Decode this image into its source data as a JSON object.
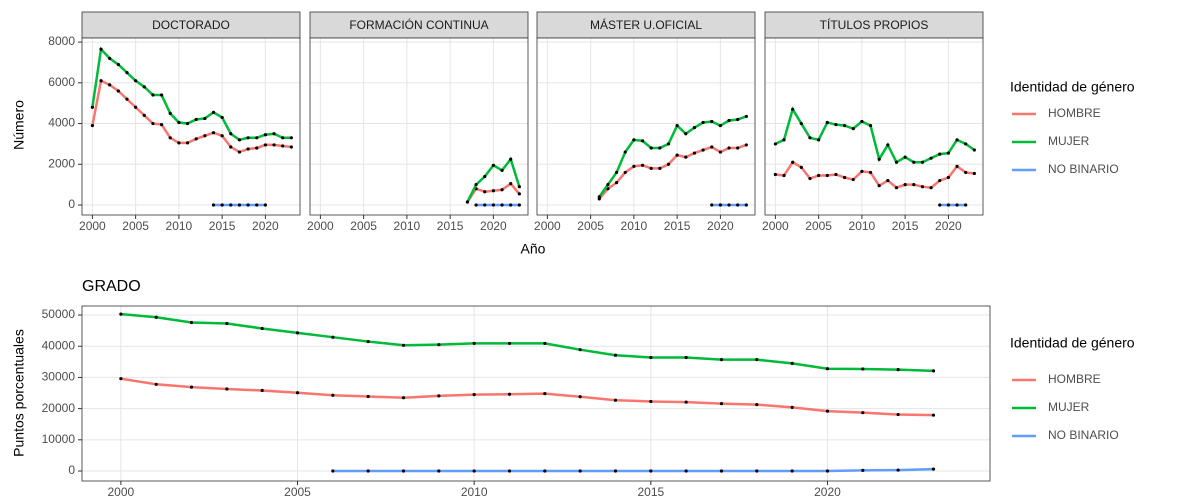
{
  "chart_data": [
    {
      "type": "line",
      "xlabel": "Año",
      "ylabel": "Número",
      "legend_title": "Identidad de género",
      "xlim": [
        1998.8,
        2024
      ],
      "xticks": [
        2000,
        2005,
        2010,
        2015,
        2020
      ],
      "ylim": [
        -490,
        8200
      ],
      "yticks": [
        0,
        2000,
        4000,
        6000,
        8000
      ],
      "grid": true,
      "facets": [
        {
          "title": "DOCTORADO",
          "series": [
            {
              "name": "HOMBRE",
              "color": "#F8766D",
              "x": [
                2000,
                2001,
                2002,
                2003,
                2004,
                2005,
                2006,
                2007,
                2008,
                2009,
                2010,
                2011,
                2012,
                2013,
                2014,
                2015,
                2016,
                2017,
                2018,
                2019,
                2020,
                2021,
                2022,
                2023
              ],
              "values": [
                3900,
                6100,
                5900,
                5600,
                5200,
                4800,
                4400,
                4000,
                3950,
                3300,
                3050,
                3050,
                3250,
                3400,
                3550,
                3400,
                2850,
                2600,
                2750,
                2800,
                2950,
                2950,
                2900,
                2850
              ]
            },
            {
              "name": "MUJER",
              "color": "#00BA38",
              "x": [
                2000,
                2001,
                2002,
                2003,
                2004,
                2005,
                2006,
                2007,
                2008,
                2009,
                2010,
                2011,
                2012,
                2013,
                2014,
                2015,
                2016,
                2017,
                2018,
                2019,
                2020,
                2021,
                2022,
                2023
              ],
              "values": [
                4800,
                7650,
                7200,
                6900,
                6500,
                6100,
                5800,
                5400,
                5400,
                4500,
                4050,
                4000,
                4200,
                4250,
                4550,
                4300,
                3500,
                3200,
                3300,
                3300,
                3450,
                3500,
                3300,
                3300
              ]
            },
            {
              "name": "NO BINARIO",
              "color": "#619CFF",
              "x": [
                2014,
                2015,
                2016,
                2017,
                2018,
                2019,
                2020
              ],
              "values": [
                0,
                0,
                0,
                0,
                0,
                0,
                0
              ]
            }
          ]
        },
        {
          "title": "FORMACIÓN CONTINUA",
          "series": [
            {
              "name": "HOMBRE",
              "color": "#F8766D",
              "x": [
                2017,
                2018,
                2019,
                2020,
                2021,
                2022,
                2023
              ],
              "values": [
                150,
                800,
                650,
                700,
                750,
                1050,
                550
              ]
            },
            {
              "name": "MUJER",
              "color": "#00BA38",
              "x": [
                2017,
                2018,
                2019,
                2020,
                2021,
                2022,
                2023
              ],
              "values": [
                150,
                1000,
                1400,
                1950,
                1700,
                2250,
                900
              ]
            },
            {
              "name": "NO BINARIO",
              "color": "#619CFF",
              "x": [
                2018,
                2019,
                2020,
                2021,
                2022,
                2023
              ],
              "values": [
                0,
                0,
                0,
                0,
                0,
                0
              ]
            }
          ]
        },
        {
          "title": "MÁSTER U.OFICIAL",
          "series": [
            {
              "name": "HOMBRE",
              "color": "#F8766D",
              "x": [
                2006,
                2007,
                2008,
                2009,
                2010,
                2011,
                2012,
                2013,
                2014,
                2015,
                2016,
                2017,
                2018,
                2019,
                2020,
                2021,
                2022,
                2023
              ],
              "values": [
                300,
                800,
                1100,
                1600,
                1900,
                1950,
                1800,
                1800,
                2000,
                2450,
                2350,
                2550,
                2700,
                2850,
                2600,
                2800,
                2800,
                2950
              ]
            },
            {
              "name": "MUJER",
              "color": "#00BA38",
              "x": [
                2006,
                2007,
                2008,
                2009,
                2010,
                2011,
                2012,
                2013,
                2014,
                2015,
                2016,
                2017,
                2018,
                2019,
                2020,
                2021,
                2022,
                2023
              ],
              "values": [
                400,
                1000,
                1600,
                2600,
                3200,
                3150,
                2800,
                2800,
                3000,
                3900,
                3500,
                3800,
                4050,
                4100,
                3900,
                4150,
                4200,
                4350
              ]
            },
            {
              "name": "NO BINARIO",
              "color": "#619CFF",
              "x": [
                2019,
                2020,
                2021,
                2022,
                2023
              ],
              "values": [
                0,
                0,
                0,
                0,
                0
              ]
            }
          ]
        },
        {
          "title": "TÍTULOS PROPIOS",
          "series": [
            {
              "name": "HOMBRE",
              "color": "#F8766D",
              "x": [
                2000,
                2001,
                2002,
                2003,
                2004,
                2005,
                2006,
                2007,
                2008,
                2009,
                2010,
                2011,
                2012,
                2013,
                2014,
                2015,
                2016,
                2017,
                2018,
                2019,
                2020,
                2021,
                2022,
                2023
              ],
              "values": [
                1500,
                1450,
                2100,
                1850,
                1300,
                1450,
                1450,
                1500,
                1350,
                1250,
                1650,
                1600,
                950,
                1200,
                850,
                1000,
                1000,
                900,
                850,
                1200,
                1350,
                1900,
                1600,
                1550
              ]
            },
            {
              "name": "MUJER",
              "color": "#00BA38",
              "x": [
                2000,
                2001,
                2002,
                2003,
                2004,
                2005,
                2006,
                2007,
                2008,
                2009,
                2010,
                2011,
                2012,
                2013,
                2014,
                2015,
                2016,
                2017,
                2018,
                2019,
                2020,
                2021,
                2022,
                2023
              ],
              "values": [
                3000,
                3200,
                4700,
                4000,
                3300,
                3200,
                4050,
                3950,
                3900,
                3750,
                4100,
                3900,
                2250,
                2950,
                2100,
                2350,
                2100,
                2100,
                2300,
                2500,
                2550,
                3200,
                3000,
                2700
              ]
            },
            {
              "name": "NO BINARIO",
              "color": "#619CFF",
              "x": [
                2019,
                2020,
                2021,
                2022
              ],
              "values": [
                0,
                0,
                0,
                0
              ]
            }
          ]
        }
      ]
    },
    {
      "type": "line",
      "title": "GRADO",
      "ylabel": "Puntos porcentuales",
      "legend_title": "Identidad de género",
      "xlim": [
        1998.9,
        2024.6
      ],
      "xticks": [
        2000,
        2005,
        2010,
        2015,
        2020
      ],
      "ylim": [
        -3200,
        52900
      ],
      "yticks": [
        0,
        10000,
        20000,
        30000,
        40000,
        50000
      ],
      "grid": true,
      "series": [
        {
          "name": "HOMBRE",
          "color": "#F8766D",
          "x": [
            2000,
            2001,
            2002,
            2003,
            2004,
            2005,
            2006,
            2007,
            2008,
            2009,
            2010,
            2011,
            2012,
            2013,
            2014,
            2015,
            2016,
            2017,
            2018,
            2019,
            2020,
            2021,
            2022,
            2023
          ],
          "values": [
            29600,
            27800,
            26900,
            26300,
            25800,
            25100,
            24300,
            23900,
            23500,
            24100,
            24500,
            24600,
            24800,
            23800,
            22700,
            22300,
            22100,
            21600,
            21300,
            20400,
            19200,
            18700,
            18100,
            17900
          ]
        },
        {
          "name": "MUJER",
          "color": "#00BA38",
          "x": [
            2000,
            2001,
            2002,
            2003,
            2004,
            2005,
            2006,
            2007,
            2008,
            2009,
            2010,
            2011,
            2012,
            2013,
            2014,
            2015,
            2016,
            2017,
            2018,
            2019,
            2020,
            2021,
            2022,
            2023
          ],
          "values": [
            50300,
            49300,
            47600,
            47300,
            45700,
            44300,
            42900,
            41500,
            40300,
            40500,
            40900,
            40900,
            40900,
            38900,
            37100,
            36400,
            36400,
            35700,
            35700,
            34500,
            32800,
            32700,
            32500,
            32100
          ]
        },
        {
          "name": "NO BINARIO",
          "color": "#619CFF",
          "x": [
            2006,
            2007,
            2008,
            2009,
            2010,
            2011,
            2012,
            2013,
            2014,
            2015,
            2016,
            2017,
            2018,
            2019,
            2020,
            2021,
            2022,
            2023
          ],
          "values": [
            0,
            0,
            0,
            0,
            0,
            0,
            0,
            0,
            0,
            0,
            0,
            0,
            0,
            0,
            0,
            200,
            300,
            600
          ]
        }
      ]
    }
  ]
}
